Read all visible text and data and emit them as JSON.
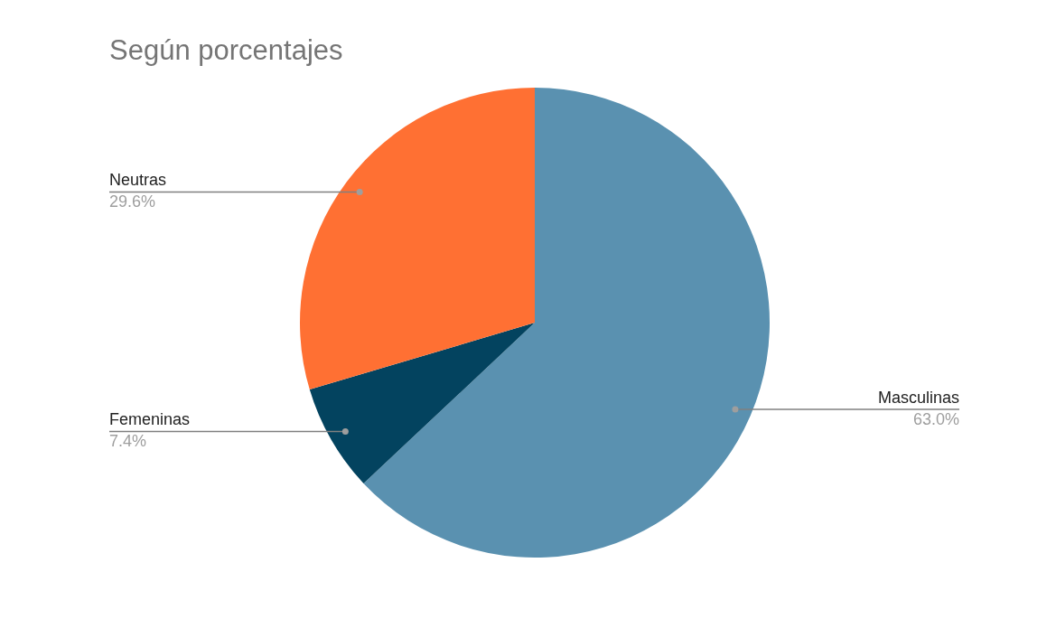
{
  "chart_data": {
    "type": "pie",
    "title": "Según porcentajes",
    "categories": [
      "Masculinas",
      "Femeninas",
      "Neutras"
    ],
    "values": [
      63.0,
      7.4,
      29.6
    ],
    "colors": [
      "#5a91b0",
      "#03435f",
      "#ff7033"
    ],
    "value_labels": [
      "63.0%",
      "7.4%",
      "29.6%"
    ]
  }
}
